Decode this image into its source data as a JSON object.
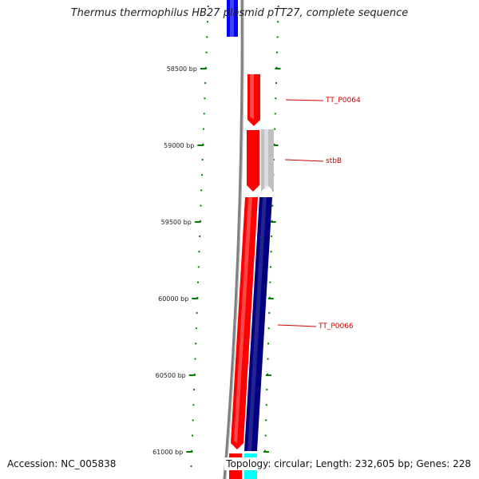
{
  "title": "Thermus thermophilus HB27 plasmid pTT27, complete sequence",
  "footer": {
    "accession": "Accession: NC_005838",
    "topology": "Topology: circular; Length: 232,605 bp; Genes: 228"
  },
  "scale": {
    "labels": [
      "58500 bp",
      "59000 bp",
      "59500 bp",
      "60000 bp",
      "60500 bp",
      "61000 bp"
    ]
  },
  "genes": [
    {
      "label": "TT_P0064",
      "strand": "reverse",
      "color": "#ff0000"
    },
    {
      "label": "stbB",
      "strand": "forward",
      "color": "#c0c0c0"
    },
    {
      "label": "TT_P0066",
      "strand": "forward",
      "color": "#000080"
    }
  ],
  "colors": {
    "backbone": "#808080",
    "tick": "#008000",
    "label": "#cc0000",
    "reverse_gene": "#ff0000",
    "prev_gene": "#0000ff",
    "next_gene": "#00ffff"
  }
}
